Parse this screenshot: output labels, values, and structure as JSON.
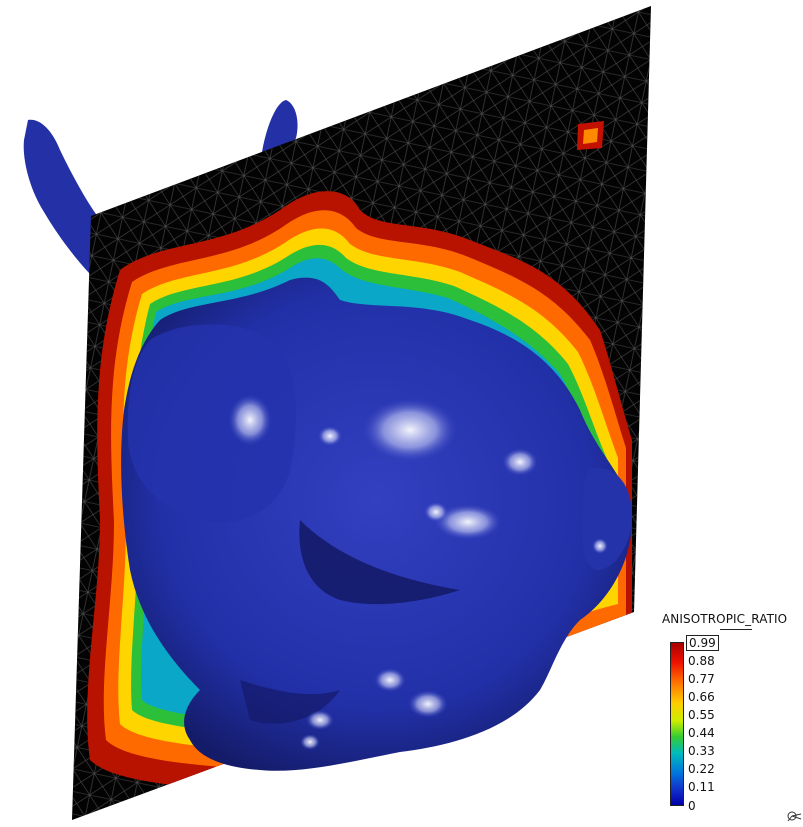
{
  "legend": {
    "title": "ANISOTROPIC_RATIO",
    "labels": [
      "0.99",
      "0.88",
      "0.77",
      "0.66",
      "0.55",
      "0.44",
      "0.33",
      "0.22",
      "0.11",
      "0"
    ],
    "highlighted_label": "0.99",
    "gradient": [
      "#aa0000",
      "#ee1100",
      "#ff7700",
      "#ffcc00",
      "#ccee00",
      "#33cc33",
      "#00bbbb",
      "#0077dd",
      "#1133cc",
      "#0000aa"
    ]
  },
  "colors": {
    "plane": "#020202",
    "mesh_lines": "#5a5a5a",
    "surface": "#1e2a9e",
    "surface_highlight": "#ffffff"
  },
  "icons": {
    "orientation": "axes-orientation-icon"
  }
}
